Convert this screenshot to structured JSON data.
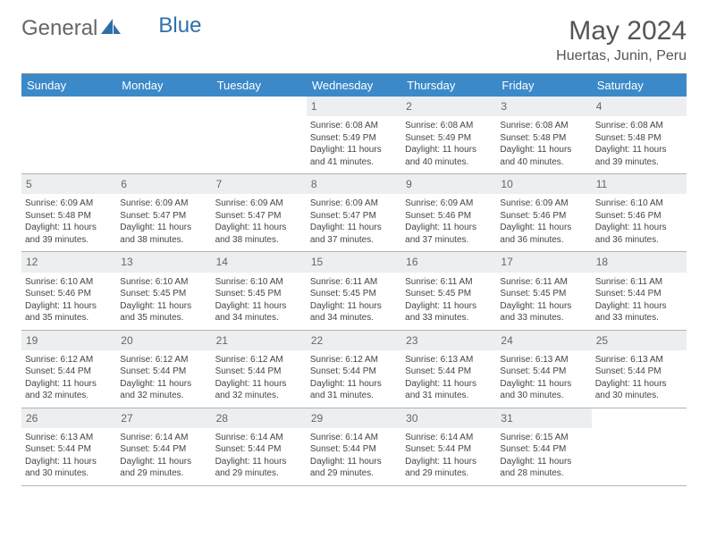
{
  "logo": {
    "text1": "General",
    "text2": "Blue"
  },
  "title": "May 2024",
  "location": "Huertas, Junin, Peru",
  "weekday_header_bg": "#3b89c9",
  "weekday_header_fg": "#ffffff",
  "daynum_bg": "#eceef0",
  "border_color": "#aeb4bb",
  "weekdays": [
    "Sunday",
    "Monday",
    "Tuesday",
    "Wednesday",
    "Thursday",
    "Friday",
    "Saturday"
  ],
  "weeks": [
    [
      {
        "blank": true
      },
      {
        "blank": true
      },
      {
        "blank": true
      },
      {
        "day": "1",
        "sunrise": "6:08 AM",
        "sunset": "5:49 PM",
        "daylight": "11 hours and 41 minutes."
      },
      {
        "day": "2",
        "sunrise": "6:08 AM",
        "sunset": "5:49 PM",
        "daylight": "11 hours and 40 minutes."
      },
      {
        "day": "3",
        "sunrise": "6:08 AM",
        "sunset": "5:48 PM",
        "daylight": "11 hours and 40 minutes."
      },
      {
        "day": "4",
        "sunrise": "6:08 AM",
        "sunset": "5:48 PM",
        "daylight": "11 hours and 39 minutes."
      }
    ],
    [
      {
        "day": "5",
        "sunrise": "6:09 AM",
        "sunset": "5:48 PM",
        "daylight": "11 hours and 39 minutes."
      },
      {
        "day": "6",
        "sunrise": "6:09 AM",
        "sunset": "5:47 PM",
        "daylight": "11 hours and 38 minutes."
      },
      {
        "day": "7",
        "sunrise": "6:09 AM",
        "sunset": "5:47 PM",
        "daylight": "11 hours and 38 minutes."
      },
      {
        "day": "8",
        "sunrise": "6:09 AM",
        "sunset": "5:47 PM",
        "daylight": "11 hours and 37 minutes."
      },
      {
        "day": "9",
        "sunrise": "6:09 AM",
        "sunset": "5:46 PM",
        "daylight": "11 hours and 37 minutes."
      },
      {
        "day": "10",
        "sunrise": "6:09 AM",
        "sunset": "5:46 PM",
        "daylight": "11 hours and 36 minutes."
      },
      {
        "day": "11",
        "sunrise": "6:10 AM",
        "sunset": "5:46 PM",
        "daylight": "11 hours and 36 minutes."
      }
    ],
    [
      {
        "day": "12",
        "sunrise": "6:10 AM",
        "sunset": "5:46 PM",
        "daylight": "11 hours and 35 minutes."
      },
      {
        "day": "13",
        "sunrise": "6:10 AM",
        "sunset": "5:45 PM",
        "daylight": "11 hours and 35 minutes."
      },
      {
        "day": "14",
        "sunrise": "6:10 AM",
        "sunset": "5:45 PM",
        "daylight": "11 hours and 34 minutes."
      },
      {
        "day": "15",
        "sunrise": "6:11 AM",
        "sunset": "5:45 PM",
        "daylight": "11 hours and 34 minutes."
      },
      {
        "day": "16",
        "sunrise": "6:11 AM",
        "sunset": "5:45 PM",
        "daylight": "11 hours and 33 minutes."
      },
      {
        "day": "17",
        "sunrise": "6:11 AM",
        "sunset": "5:45 PM",
        "daylight": "11 hours and 33 minutes."
      },
      {
        "day": "18",
        "sunrise": "6:11 AM",
        "sunset": "5:44 PM",
        "daylight": "11 hours and 33 minutes."
      }
    ],
    [
      {
        "day": "19",
        "sunrise": "6:12 AM",
        "sunset": "5:44 PM",
        "daylight": "11 hours and 32 minutes."
      },
      {
        "day": "20",
        "sunrise": "6:12 AM",
        "sunset": "5:44 PM",
        "daylight": "11 hours and 32 minutes."
      },
      {
        "day": "21",
        "sunrise": "6:12 AM",
        "sunset": "5:44 PM",
        "daylight": "11 hours and 32 minutes."
      },
      {
        "day": "22",
        "sunrise": "6:12 AM",
        "sunset": "5:44 PM",
        "daylight": "11 hours and 31 minutes."
      },
      {
        "day": "23",
        "sunrise": "6:13 AM",
        "sunset": "5:44 PM",
        "daylight": "11 hours and 31 minutes."
      },
      {
        "day": "24",
        "sunrise": "6:13 AM",
        "sunset": "5:44 PM",
        "daylight": "11 hours and 30 minutes."
      },
      {
        "day": "25",
        "sunrise": "6:13 AM",
        "sunset": "5:44 PM",
        "daylight": "11 hours and 30 minutes."
      }
    ],
    [
      {
        "day": "26",
        "sunrise": "6:13 AM",
        "sunset": "5:44 PM",
        "daylight": "11 hours and 30 minutes."
      },
      {
        "day": "27",
        "sunrise": "6:14 AM",
        "sunset": "5:44 PM",
        "daylight": "11 hours and 29 minutes."
      },
      {
        "day": "28",
        "sunrise": "6:14 AM",
        "sunset": "5:44 PM",
        "daylight": "11 hours and 29 minutes."
      },
      {
        "day": "29",
        "sunrise": "6:14 AM",
        "sunset": "5:44 PM",
        "daylight": "11 hours and 29 minutes."
      },
      {
        "day": "30",
        "sunrise": "6:14 AM",
        "sunset": "5:44 PM",
        "daylight": "11 hours and 29 minutes."
      },
      {
        "day": "31",
        "sunrise": "6:15 AM",
        "sunset": "5:44 PM",
        "daylight": "11 hours and 28 minutes."
      },
      {
        "blank": true
      }
    ]
  ]
}
